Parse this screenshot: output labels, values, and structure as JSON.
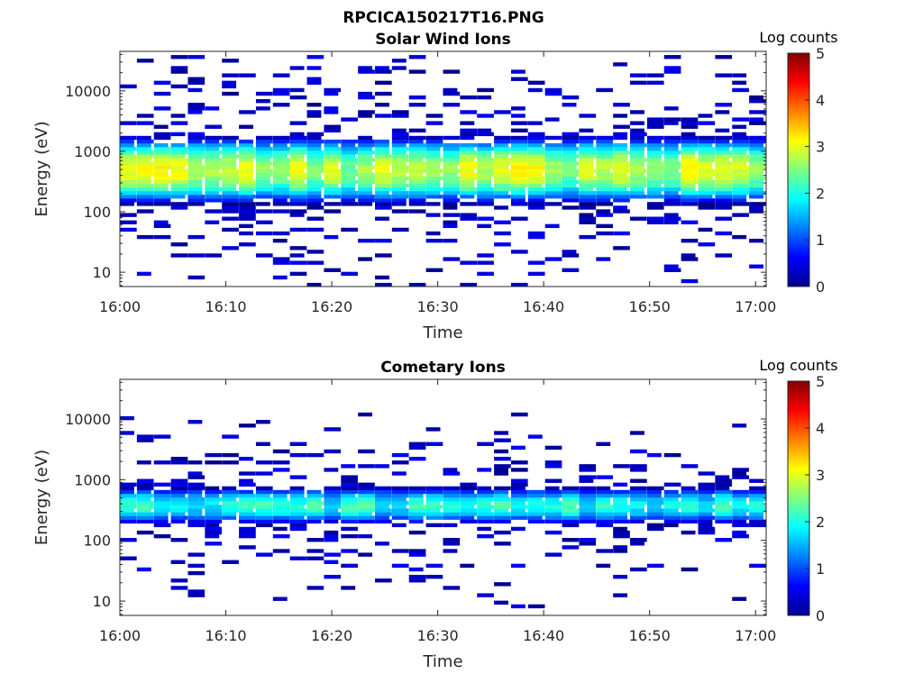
{
  "figure_title": "RPCICA150217T16.PNG",
  "colorbar": {
    "title": "Log counts",
    "range": [
      0,
      5
    ],
    "ticks": [
      "0",
      "1",
      "2",
      "3",
      "4",
      "5"
    ],
    "colormap": "jet"
  },
  "chart_data": [
    {
      "type": "heatmap",
      "title": "Solar Wind Ions",
      "xlabel": "Time",
      "ylabel": "Energy (eV)",
      "xlim": [
        "16:00",
        "17:01"
      ],
      "ylim": [
        5.8,
        45000
      ],
      "yscale": "log",
      "xticks": [
        "16:00",
        "16:10",
        "16:20",
        "16:30",
        "16:40",
        "16:50",
        "17:00"
      ],
      "yticks": [
        "10",
        "100",
        "1000",
        "10000"
      ],
      "core_band_eV": [
        150,
        1600
      ],
      "peak_log_counts": 3.0,
      "grid": false
    },
    {
      "type": "heatmap",
      "title": "Cometary Ions",
      "xlabel": "Time",
      "ylabel": "Energy (eV)",
      "xlim": [
        "16:00",
        "17:01"
      ],
      "ylim": [
        5.8,
        45000
      ],
      "yscale": "log",
      "xticks": [
        "16:00",
        "16:10",
        "16:20",
        "16:30",
        "16:40",
        "16:50",
        "17:00"
      ],
      "yticks": [
        "10",
        "100",
        "1000",
        "10000"
      ],
      "core_band_eV": [
        200,
        700
      ],
      "peak_log_counts": 2.0,
      "grid": false
    }
  ]
}
